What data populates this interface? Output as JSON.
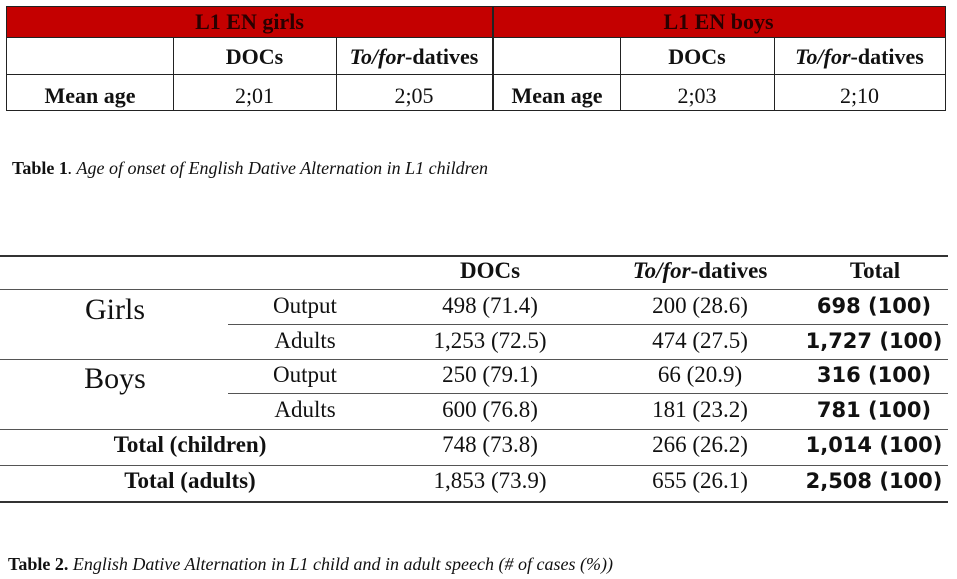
{
  "table1": {
    "group_headers": [
      "L1 EN girls",
      "L1 EN boys"
    ],
    "col_docs": "DOCs",
    "col_to_for_italic": "To/for",
    "col_to_for_rest": "-datives",
    "row_label": "Mean age",
    "girls": {
      "docs": "2;01",
      "to_for": "2;05"
    },
    "boys": {
      "docs": "2;03",
      "to_for": "2;10"
    },
    "header_color": "#c40000"
  },
  "caption1": {
    "label": "Table 1",
    "text": ". Age of onset of English Dative Alternation in L1 children"
  },
  "table2": {
    "headers": {
      "docs": "DOCs",
      "to_for_italic": "To/for",
      "to_for_rest": "-datives",
      "total": "Total"
    },
    "groups": [
      "Girls",
      "Boys"
    ],
    "sub_output": "Output",
    "sub_adults": "Adults",
    "rows": [
      {
        "docs": "498 (71.4)",
        "to_for": "200 (28.6)",
        "total": "698 (100)"
      },
      {
        "docs": "1,253 (72.5)",
        "to_for": "474 (27.5)",
        "total": "1,727 (100)"
      },
      {
        "docs": "250 (79.1)",
        "to_for": "66 (20.9)",
        "total": "316 (100)"
      },
      {
        "docs": "600 (76.8)",
        "to_for": "181 (23.2)",
        "total": "781 (100)"
      }
    ],
    "total_children": {
      "label": "Total (children)",
      "docs": "748 (73.8)",
      "to_for": "266 (26.2)",
      "total": "1,014 (100)"
    },
    "total_adults": {
      "label": "Total (adults)",
      "docs": "1,853 (73.9)",
      "to_for": "655 (26.1)",
      "total": "2,508 (100)"
    }
  },
  "caption2": {
    "label": "Table 2.",
    "text": " English Dative Alternation in L1 child and in adult speech (# of cases (%))"
  }
}
